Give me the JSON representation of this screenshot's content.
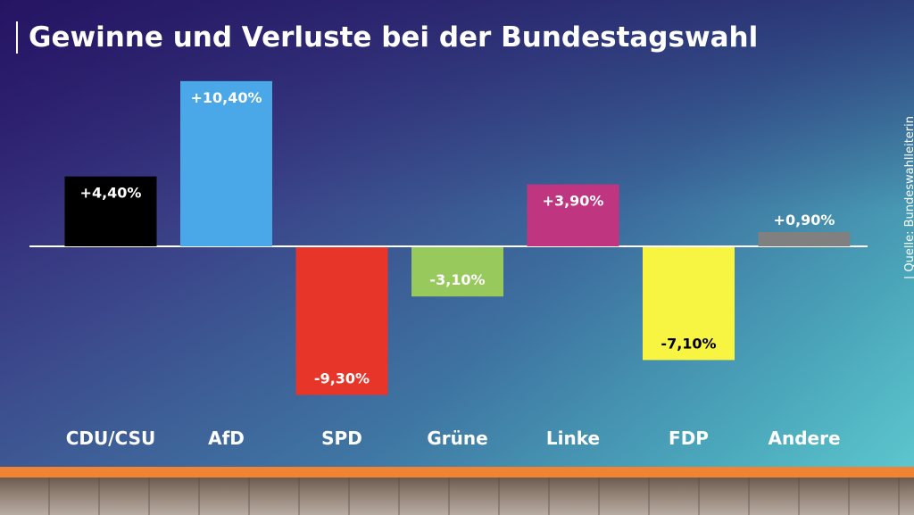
{
  "chart_data": {
    "type": "bar",
    "title": "Gewinne und Verluste bei der Bundestagswahl",
    "source": "| Quelle: Bundeswahlleiterin",
    "categories": [
      "CDU/CSU",
      "AfD",
      "SPD",
      "Grüne",
      "Linke",
      "FDP",
      "Andere"
    ],
    "values": [
      4.4,
      10.4,
      -9.3,
      -3.1,
      3.9,
      -7.1,
      0.9
    ],
    "data_labels": [
      "+4,40%",
      "+10,40%",
      "-9,30%",
      "-3,10%",
      "+3,90%",
      "-7,10%",
      "+0,90%"
    ],
    "colors": [
      "#000000",
      "#4aa8e8",
      "#e8352a",
      "#98c95c",
      "#c0357f",
      "#f8f542",
      "#808080"
    ],
    "label_colors": [
      "#ffffff",
      "#ffffff",
      "#ffffff",
      "#ffffff",
      "#ffffff",
      "#000000",
      "#ffffff"
    ],
    "label_position": [
      "inside",
      "inside",
      "inside",
      "inside",
      "inside",
      "inside",
      "outside"
    ],
    "ylim": [
      -10,
      11
    ],
    "xlabel": "",
    "ylabel": "",
    "grid": false,
    "legend": "none"
  }
}
